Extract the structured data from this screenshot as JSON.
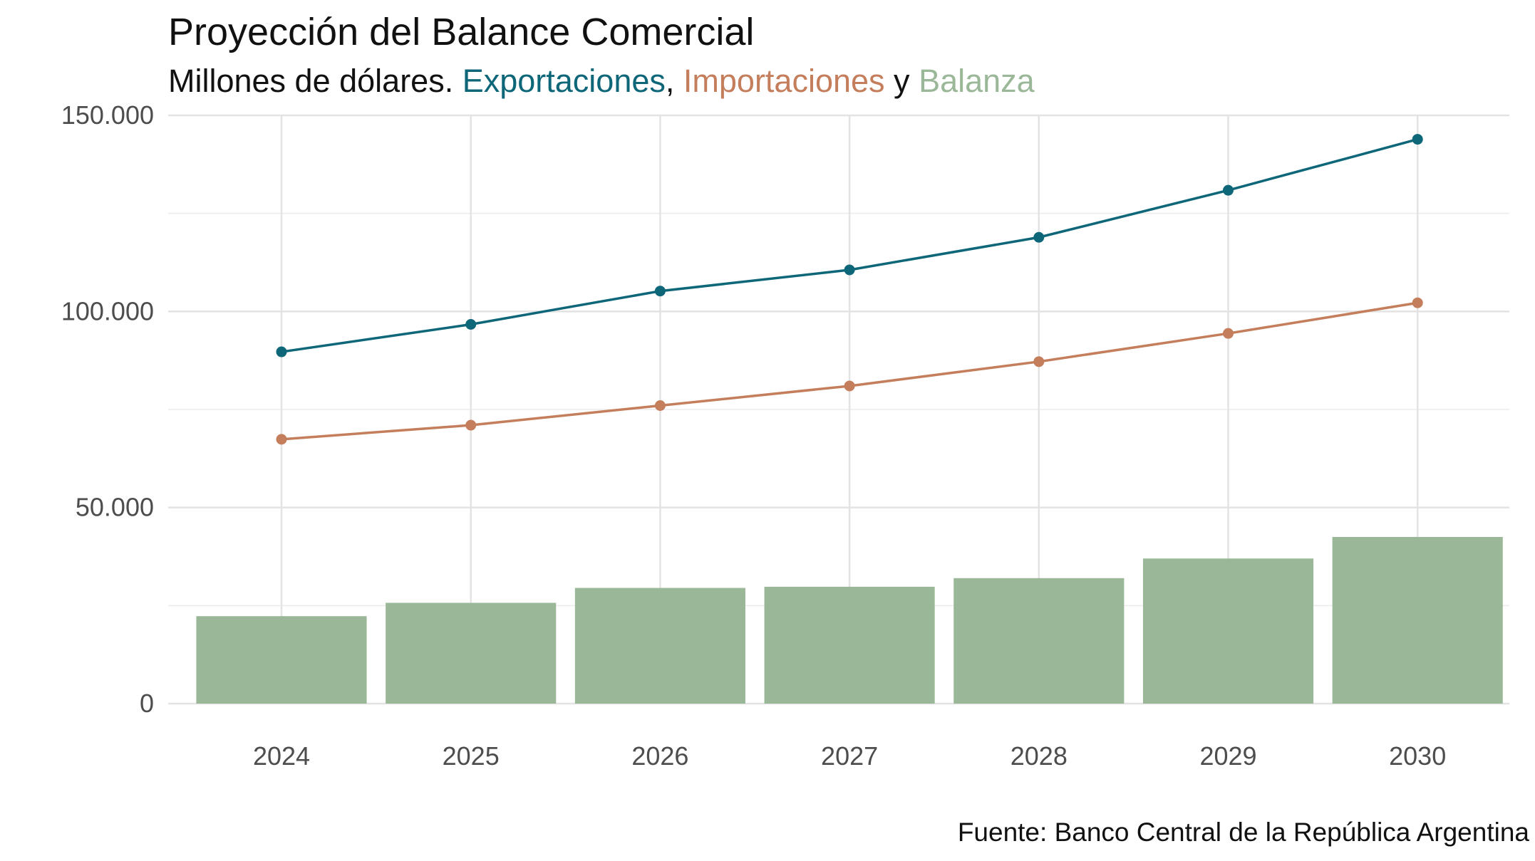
{
  "chart_data": {
    "type": "bar",
    "title": "Proyección del Balance Comercial",
    "subtitle": {
      "prefix": "Millones de dólares. ",
      "exports_label": "Exportaciones",
      "sep1": ", ",
      "imports_label": "Importaciones",
      "sep2": " y ",
      "balance_label": "Balanza"
    },
    "caption": "Fuente: Banco Central de la República Argentina",
    "categories": [
      "2024",
      "2025",
      "2026",
      "2027",
      "2028",
      "2029",
      "2030"
    ],
    "series": [
      {
        "name": "Balanza",
        "type": "bar",
        "color": "#9ab898",
        "values": [
          22300,
          25700,
          29500,
          29800,
          32000,
          37000,
          42500
        ]
      },
      {
        "name": "Exportaciones",
        "type": "line",
        "color": "#0e6679",
        "values": [
          89700,
          96700,
          105200,
          110600,
          118900,
          130900,
          143900
        ]
      },
      {
        "name": "Importaciones",
        "type": "line",
        "color": "#c47e5c",
        "values": [
          67400,
          71000,
          76000,
          81000,
          87200,
          94400,
          102200
        ]
      }
    ],
    "ylim": [
      0,
      150000
    ],
    "yticks": [
      {
        "value": 0,
        "label": "0"
      },
      {
        "value": 50000,
        "label": "50.000"
      },
      {
        "value": 100000,
        "label": "100.000"
      },
      {
        "value": 150000,
        "label": "150.000"
      }
    ],
    "grid": true,
    "legend": "in subtitle"
  }
}
